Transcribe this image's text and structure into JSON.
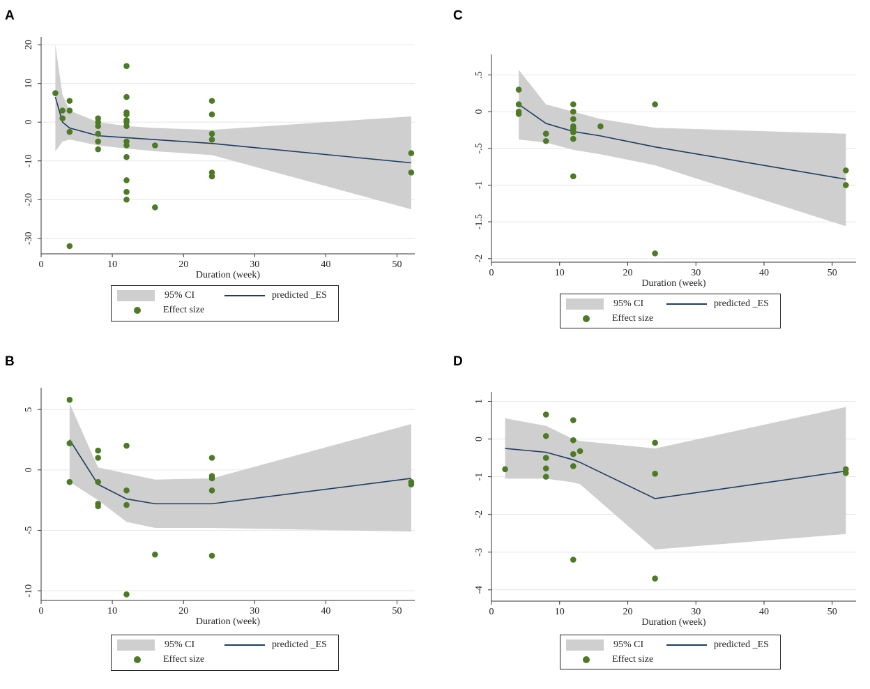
{
  "colors": {
    "ci_fill": "#cfcfcf",
    "line": "#1d3c61",
    "point": "#4c7a25",
    "grid": "#e6e6e6",
    "axis": "#333333"
  },
  "legend": {
    "ci": "95% CI",
    "pred": "predicted _ES",
    "es": "Effect size"
  },
  "chart_data": [
    {
      "panel": "A",
      "type": "scatter",
      "xlabel": "Duration (week)",
      "ylabel": "",
      "xlim": [
        0,
        52.5
      ],
      "ylim": [
        -34,
        22
      ],
      "xticks": [
        0,
        10,
        20,
        30,
        40,
        50
      ],
      "xtick_labels": [
        "0",
        "10",
        "20",
        "30",
        "40",
        "50"
      ],
      "yticks": [
        20,
        10,
        0,
        -10,
        -20,
        -30
      ],
      "ytick_labels": [
        "20",
        "10",
        "0",
        "-10",
        "-20",
        "-30"
      ],
      "grid": true,
      "ci_x": [
        2,
        3,
        4,
        8,
        12,
        16,
        24,
        52
      ],
      "ci_upper": [
        20,
        7,
        3,
        0,
        -1,
        -1.5,
        -2,
        1.5
      ],
      "ci_lower": [
        -7.5,
        -5,
        -4.5,
        -6,
        -6.8,
        -7.5,
        -8.5,
        -22.5
      ],
      "pred_x": [
        2,
        3,
        4,
        8,
        12,
        16,
        24,
        52
      ],
      "pred_y": [
        6.5,
        0,
        -1.5,
        -3.5,
        -4,
        -4.5,
        -5.5,
        -10.5
      ],
      "points": [
        [
          2,
          7.5
        ],
        [
          3,
          3
        ],
        [
          3,
          1
        ],
        [
          4,
          5.5
        ],
        [
          4,
          3
        ],
        [
          4,
          -2.5
        ],
        [
          4,
          -32
        ],
        [
          8,
          1
        ],
        [
          8,
          0
        ],
        [
          8,
          -1
        ],
        [
          8,
          -3
        ],
        [
          8,
          -5
        ],
        [
          8,
          -7
        ],
        [
          12,
          14.5
        ],
        [
          12,
          6.5
        ],
        [
          12,
          2.5
        ],
        [
          12,
          2
        ],
        [
          12,
          0.5
        ],
        [
          12,
          0
        ],
        [
          12,
          -1
        ],
        [
          12,
          -5
        ],
        [
          12,
          -6
        ],
        [
          12,
          -9
        ],
        [
          12,
          -15
        ],
        [
          12,
          -18
        ],
        [
          12,
          -20
        ],
        [
          16,
          -6
        ],
        [
          16,
          -22
        ],
        [
          24,
          5.5
        ],
        [
          24,
          2
        ],
        [
          24,
          -3
        ],
        [
          24,
          -4.5
        ],
        [
          24,
          -13
        ],
        [
          24,
          -14
        ],
        [
          52,
          -8
        ],
        [
          52,
          -13
        ]
      ]
    },
    {
      "panel": "B",
      "type": "scatter",
      "xlabel": "Duration (week)",
      "ylabel": "",
      "xlim": [
        0,
        52.5
      ],
      "ylim": [
        -10.8,
        6.8
      ],
      "xticks": [
        0,
        10,
        20,
        30,
        40,
        50
      ],
      "xtick_labels": [
        "0",
        "10",
        "20",
        "30",
        "40",
        "50"
      ],
      "yticks": [
        5,
        0,
        -5,
        -10
      ],
      "ytick_labels": [
        "5",
        "0",
        "-5",
        "-10"
      ],
      "grid": true,
      "ci_x": [
        4,
        8,
        12,
        16,
        24,
        52
      ],
      "ci_upper": [
        5.5,
        0.2,
        -0.3,
        -0.8,
        -0.7,
        3.8
      ],
      "ci_lower": [
        -1,
        -2.5,
        -4.3,
        -4.8,
        -4.8,
        -5.1
      ],
      "pred_x": [
        4,
        8,
        12,
        16,
        24,
        52
      ],
      "pred_y": [
        2.5,
        -1.2,
        -2.4,
        -2.8,
        -2.8,
        -0.7
      ],
      "points": [
        [
          4,
          5.8
        ],
        [
          4,
          2.2
        ],
        [
          4,
          -1
        ],
        [
          8,
          1.6
        ],
        [
          8,
          1
        ],
        [
          8,
          -1
        ],
        [
          8,
          -2.8
        ],
        [
          8,
          -3
        ],
        [
          12,
          2
        ],
        [
          12,
          -1.7
        ],
        [
          12,
          -2.9
        ],
        [
          12,
          -10.3
        ],
        [
          16,
          -7
        ],
        [
          24,
          1
        ],
        [
          24,
          -0.5
        ],
        [
          24,
          -0.7
        ],
        [
          24,
          -1.7
        ],
        [
          24,
          -7.1
        ],
        [
          52,
          -1
        ],
        [
          52,
          -1.2
        ]
      ]
    },
    {
      "panel": "C",
      "type": "scatter",
      "xlabel": "Duration (week)",
      "ylabel": "",
      "xlim": [
        0,
        53.5
      ],
      "ylim": [
        -2.05,
        0.78
      ],
      "xticks": [
        0,
        10,
        20,
        30,
        40,
        50
      ],
      "xtick_labels": [
        "0",
        "10",
        "20",
        "30",
        "40",
        "50"
      ],
      "yticks": [
        0.5,
        0,
        -0.5,
        -1,
        -1.5,
        -2
      ],
      "ytick_labels": [
        ".5",
        "0",
        "-.5",
        "-1",
        "-1.5",
        "-2"
      ],
      "grid": true,
      "ci_x": [
        4,
        8,
        12,
        16,
        24,
        52
      ],
      "ci_upper": [
        0.57,
        0.1,
        0,
        -0.1,
        -0.22,
        -0.3
      ],
      "ci_lower": [
        -0.38,
        -0.42,
        -0.52,
        -0.58,
        -0.73,
        -1.56
      ],
      "pred_x": [
        4,
        8,
        12,
        16,
        24,
        52
      ],
      "pred_y": [
        0.1,
        -0.16,
        -0.27,
        -0.33,
        -0.48,
        -0.92
      ],
      "points": [
        [
          4,
          0.3
        ],
        [
          4,
          0.1
        ],
        [
          4,
          0
        ],
        [
          4,
          -0.03
        ],
        [
          8,
          -0.3
        ],
        [
          8,
          -0.4
        ],
        [
          12,
          0.1
        ],
        [
          12,
          0
        ],
        [
          12,
          -0.1
        ],
        [
          12,
          -0.2
        ],
        [
          12,
          -0.23
        ],
        [
          12,
          -0.28
        ],
        [
          12,
          -0.37
        ],
        [
          12,
          -0.88
        ],
        [
          16,
          -0.2
        ],
        [
          24,
          0.1
        ],
        [
          24,
          -1.93
        ],
        [
          52,
          -0.8
        ],
        [
          52,
          -1
        ]
      ]
    },
    {
      "panel": "D",
      "type": "scatter",
      "xlabel": "Duration (week)",
      "ylabel": "",
      "xlim": [
        0,
        53.5
      ],
      "ylim": [
        -4.3,
        1.25
      ],
      "xticks": [
        0,
        10,
        20,
        30,
        40,
        50
      ],
      "xtick_labels": [
        "0",
        "10",
        "20",
        "30",
        "40",
        "50"
      ],
      "yticks": [
        1,
        0,
        -1,
        -2,
        -3,
        -4
      ],
      "ytick_labels": [
        "1",
        "0",
        "-1",
        "-2",
        "-3",
        "-4"
      ],
      "grid": true,
      "ci_x": [
        2,
        8,
        12,
        13,
        24,
        52
      ],
      "ci_upper": [
        0.55,
        0.35,
        0,
        -0.05,
        -0.25,
        0.85
      ],
      "ci_lower": [
        -1.05,
        -1.05,
        -1.15,
        -1.2,
        -2.93,
        -2.52
      ],
      "pred_x": [
        2,
        8,
        12,
        13,
        24,
        52
      ],
      "pred_y": [
        -0.25,
        -0.35,
        -0.55,
        -0.62,
        -1.58,
        -0.85
      ],
      "points": [
        [
          2,
          -0.8
        ],
        [
          8,
          0.65
        ],
        [
          8,
          0.08
        ],
        [
          8,
          -0.5
        ],
        [
          8,
          -0.78
        ],
        [
          8,
          -1
        ],
        [
          12,
          0.5
        ],
        [
          12,
          -0.03
        ],
        [
          12,
          -0.4
        ],
        [
          12,
          -0.72
        ],
        [
          12,
          -3.2
        ],
        [
          13,
          -0.32
        ],
        [
          24,
          -0.1
        ],
        [
          24,
          -0.92
        ],
        [
          24,
          -3.7
        ],
        [
          52,
          -0.8
        ],
        [
          52,
          -0.9
        ]
      ]
    }
  ]
}
